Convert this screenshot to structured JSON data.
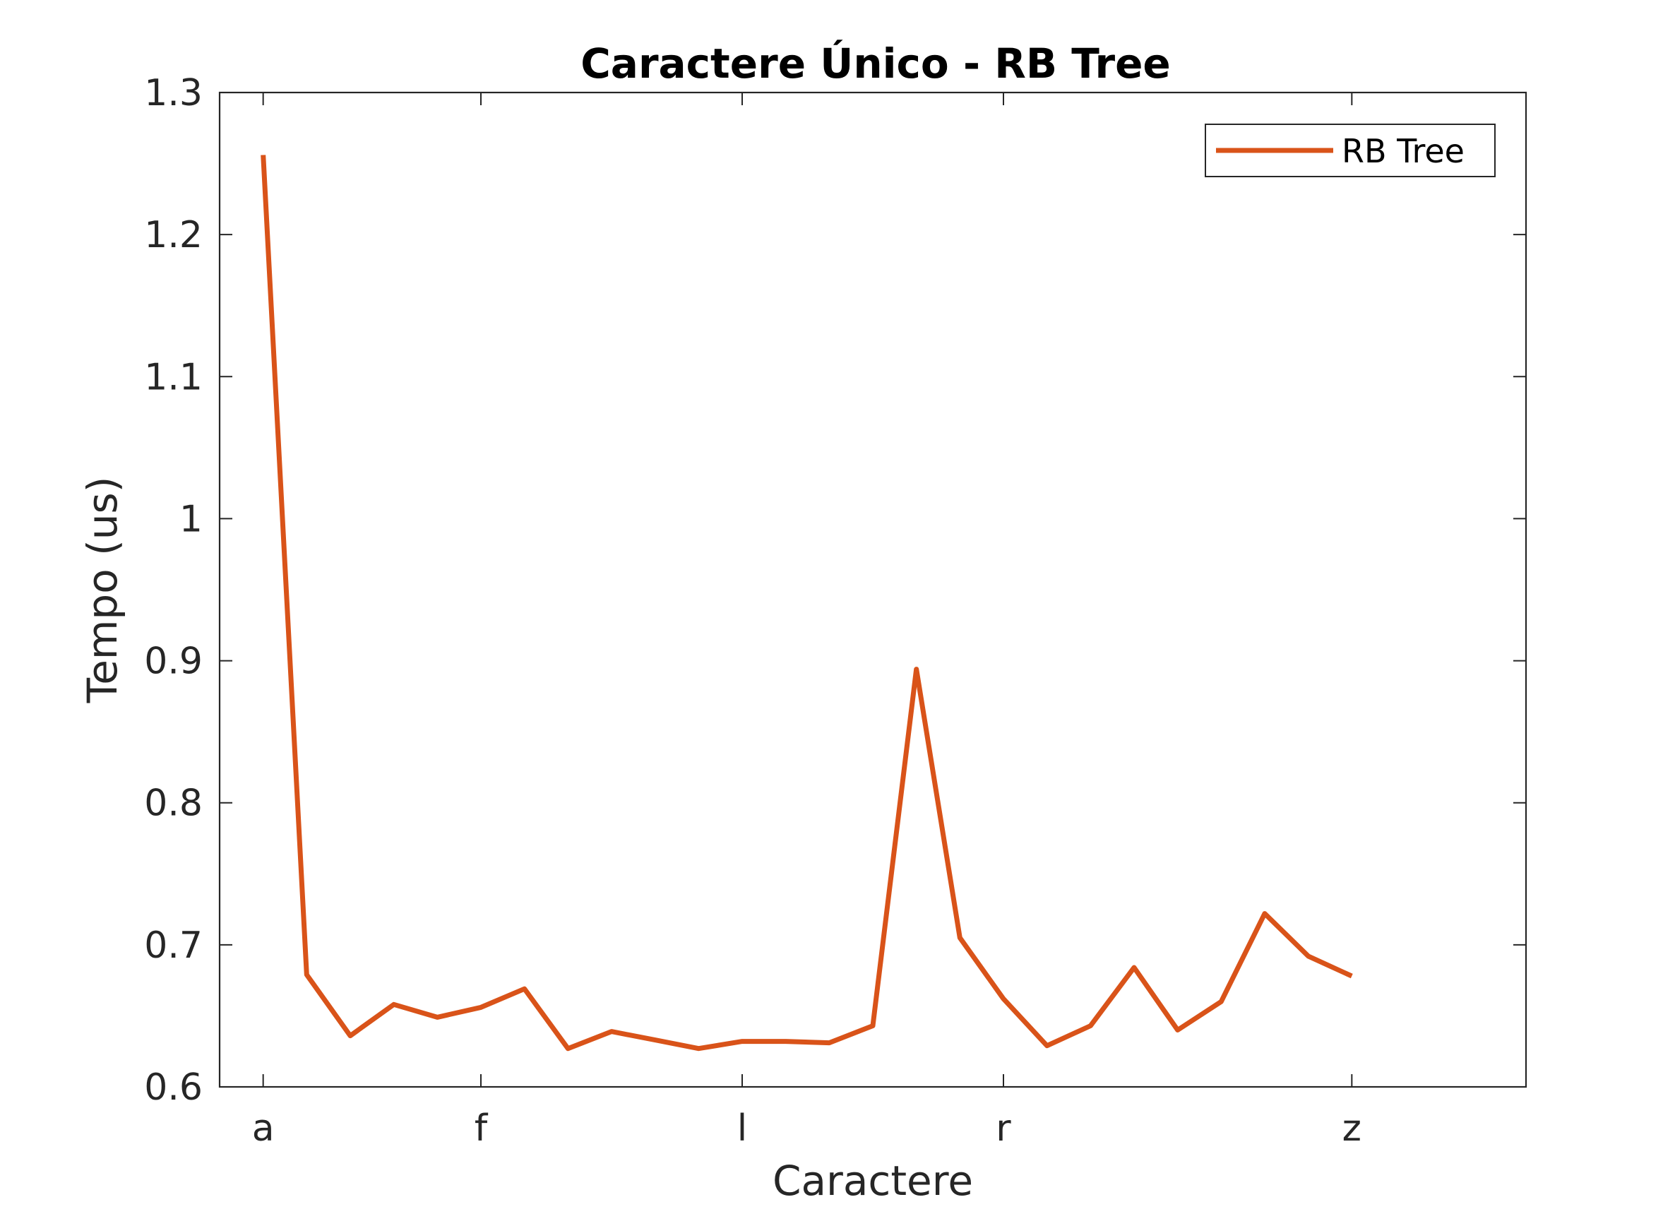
{
  "chart_data": {
    "type": "line",
    "title": "Caractere Único - RB Tree",
    "xlabel": "Caractere",
    "ylabel": "Tempo (us)",
    "x_ticks": [
      {
        "label": "a",
        "pos": 0
      },
      {
        "label": "f",
        "pos": 5
      },
      {
        "label": "l",
        "pos": 11
      },
      {
        "label": "r",
        "pos": 17
      },
      {
        "label": "z",
        "pos": 25
      }
    ],
    "xlim": [
      -1,
      29
    ],
    "ylim": [
      0.6,
      1.3
    ],
    "y_ticks": [
      0.6,
      0.7,
      0.8,
      0.9,
      1,
      1.1,
      1.2,
      1.3
    ],
    "grid": false,
    "legend_position": "top-right",
    "series": [
      {
        "name": "RB Tree",
        "color": "#D95319",
        "x": [
          0,
          1,
          2,
          3,
          4,
          5,
          6,
          7,
          8,
          9,
          10,
          11,
          12,
          13,
          14,
          15,
          16,
          17,
          18,
          19,
          20,
          21,
          22,
          23,
          24,
          25
        ],
        "values": [
          1.256,
          0.679,
          0.636,
          0.658,
          0.649,
          0.656,
          0.669,
          0.627,
          0.639,
          0.633,
          0.627,
          0.632,
          0.632,
          0.631,
          0.643,
          0.894,
          0.705,
          0.662,
          0.629,
          0.643,
          0.684,
          0.64,
          0.66,
          0.722,
          0.692,
          0.678
        ]
      }
    ]
  }
}
